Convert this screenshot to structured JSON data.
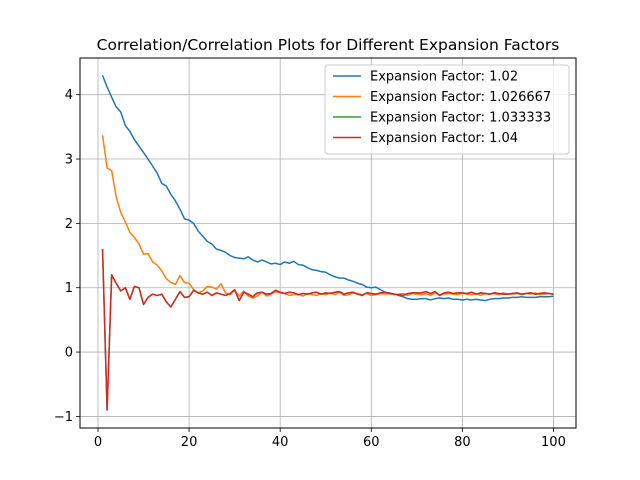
{
  "chart_data": {
    "type": "line",
    "title": "Correlation/Correlation Plots for Different Expansion Factors",
    "xlabel": "",
    "ylabel": "",
    "xlim": [
      -3.95,
      104.95
    ],
    "ylim": [
      -1.18,
      4.57
    ],
    "xticks": [
      0,
      20,
      40,
      60,
      80,
      100
    ],
    "yticks": [
      -1,
      0,
      1,
      2,
      3,
      4
    ],
    "grid": true,
    "legend": "top-right",
    "series": [
      {
        "name": "Expansion Factor: 1.02",
        "color": "#1f77b4",
        "x": [
          1,
          2,
          3,
          4,
          5,
          6,
          7,
          8,
          9,
          10,
          11,
          12,
          13,
          14,
          15,
          16,
          17,
          18,
          19,
          20,
          21,
          22,
          23,
          24,
          25,
          26,
          27,
          28,
          29,
          30,
          31,
          32,
          33,
          34,
          35,
          36,
          37,
          38,
          39,
          40,
          41,
          42,
          43,
          44,
          45,
          46,
          47,
          48,
          49,
          50,
          51,
          52,
          53,
          54,
          55,
          56,
          57,
          58,
          59,
          60,
          61,
          62,
          63,
          64,
          65,
          66,
          67,
          68,
          69,
          70,
          71,
          72,
          73,
          74,
          75,
          76,
          77,
          78,
          79,
          80,
          81,
          82,
          83,
          84,
          85,
          86,
          87,
          88,
          89,
          90,
          91,
          92,
          93,
          94,
          95,
          96,
          97,
          98,
          99,
          100
        ],
        "y": [
          4.3,
          4.12,
          3.96,
          3.81,
          3.73,
          3.52,
          3.43,
          3.3,
          3.2,
          3.1,
          3.0,
          2.89,
          2.78,
          2.62,
          2.58,
          2.45,
          2.35,
          2.22,
          2.07,
          2.05,
          2.0,
          1.88,
          1.8,
          1.72,
          1.68,
          1.6,
          1.58,
          1.55,
          1.5,
          1.47,
          1.46,
          1.45,
          1.48,
          1.43,
          1.4,
          1.43,
          1.4,
          1.37,
          1.38,
          1.36,
          1.4,
          1.38,
          1.41,
          1.36,
          1.35,
          1.31,
          1.28,
          1.27,
          1.25,
          1.24,
          1.2,
          1.17,
          1.15,
          1.15,
          1.12,
          1.1,
          1.07,
          1.05,
          1.01,
          1.0,
          1.01,
          0.97,
          0.93,
          0.92,
          0.9,
          0.88,
          0.86,
          0.83,
          0.82,
          0.82,
          0.83,
          0.83,
          0.81,
          0.83,
          0.84,
          0.83,
          0.84,
          0.82,
          0.82,
          0.81,
          0.82,
          0.81,
          0.82,
          0.81,
          0.8,
          0.82,
          0.83,
          0.83,
          0.84,
          0.84,
          0.85,
          0.85,
          0.86,
          0.85,
          0.85,
          0.85,
          0.86,
          0.86,
          0.86,
          0.87
        ]
      },
      {
        "name": "Expansion Factor: 1.026667",
        "color": "#ff7f0e",
        "x": [
          1,
          2,
          3,
          4,
          5,
          6,
          7,
          8,
          9,
          10,
          11,
          12,
          13,
          14,
          15,
          16,
          17,
          18,
          19,
          20,
          21,
          22,
          23,
          24,
          25,
          26,
          27,
          28,
          29,
          30,
          31,
          32,
          33,
          34,
          35,
          36,
          37,
          38,
          39,
          40,
          41,
          42,
          43,
          44,
          45,
          46,
          47,
          48,
          49,
          50,
          51,
          52,
          53,
          54,
          55,
          56,
          57,
          58,
          59,
          60,
          61,
          62,
          63,
          64,
          65,
          66,
          67,
          68,
          69,
          70,
          71,
          72,
          73,
          74,
          75,
          76,
          77,
          78,
          79,
          80,
          81,
          82,
          83,
          84,
          85,
          86,
          87,
          88,
          89,
          90,
          91,
          92,
          93,
          94,
          95,
          96,
          97,
          98,
          99,
          100
        ],
        "y": [
          3.37,
          2.86,
          2.82,
          2.41,
          2.17,
          2.02,
          1.86,
          1.78,
          1.68,
          1.52,
          1.53,
          1.4,
          1.35,
          1.26,
          1.14,
          1.08,
          1.05,
          1.19,
          1.08,
          1.07,
          0.97,
          0.92,
          0.95,
          1.02,
          1.01,
          0.98,
          1.06,
          0.92,
          0.89,
          0.96,
          0.87,
          0.95,
          0.87,
          0.84,
          0.87,
          0.93,
          0.87,
          0.9,
          0.94,
          0.92,
          0.91,
          0.88,
          0.89,
          0.9,
          0.87,
          0.91,
          0.89,
          0.88,
          0.91,
          0.89,
          0.92,
          0.89,
          0.93,
          0.88,
          0.89,
          0.92,
          0.91,
          0.89,
          0.91,
          0.88,
          0.89,
          0.91,
          0.9,
          0.91,
          0.89,
          0.9,
          0.91,
          0.88,
          0.91,
          0.9,
          0.89,
          0.91,
          0.88,
          0.92,
          0.89,
          0.9,
          0.91,
          0.9,
          0.89,
          0.92,
          0.9,
          0.89,
          0.91,
          0.88,
          0.91,
          0.9,
          0.91,
          0.89,
          0.92,
          0.9,
          0.9,
          0.91,
          0.89,
          0.91,
          0.9,
          0.92,
          0.89,
          0.9,
          0.91,
          0.9
        ]
      },
      {
        "name": "Expansion Factor: 1.033333",
        "color": "#2ca02c",
        "x": [
          1,
          2,
          3,
          4,
          5,
          6,
          7,
          8,
          9,
          10,
          11,
          12,
          13,
          14,
          15,
          16,
          17,
          18,
          19,
          20,
          21,
          22,
          23,
          24,
          25,
          26,
          27,
          28,
          29,
          30,
          31,
          32,
          33,
          34,
          35,
          36,
          37,
          38,
          39,
          40,
          41,
          42,
          43,
          44,
          45,
          46,
          47,
          48,
          49,
          50,
          51,
          52,
          53,
          54,
          55,
          56,
          57,
          58,
          59,
          60,
          61,
          62,
          63,
          64,
          65,
          66,
          67,
          68,
          69,
          70,
          71,
          72,
          73,
          74,
          75,
          76,
          77,
          78,
          79,
          80,
          81,
          82,
          83,
          84,
          85,
          86,
          87,
          88,
          89,
          90,
          91,
          92,
          93,
          94,
          95,
          96,
          97,
          98,
          99,
          100
        ],
        "y": [
          1.6,
          -0.9,
          1.2,
          1.07,
          0.95,
          1.0,
          0.82,
          1.02,
          1.0,
          0.74,
          0.85,
          0.9,
          0.88,
          0.9,
          0.78,
          0.7,
          0.82,
          0.94,
          0.85,
          0.86,
          0.96,
          0.92,
          0.9,
          0.93,
          0.88,
          0.92,
          0.9,
          0.88,
          0.91,
          0.97,
          0.8,
          0.93,
          0.9,
          0.86,
          0.92,
          0.93,
          0.9,
          0.91,
          0.96,
          0.93,
          0.91,
          0.93,
          0.92,
          0.89,
          0.91,
          0.9,
          0.92,
          0.93,
          0.9,
          0.92,
          0.91,
          0.93,
          0.94,
          0.9,
          0.92,
          0.93,
          0.9,
          0.88,
          0.92,
          0.91,
          0.9,
          0.92,
          0.93,
          0.91,
          0.9,
          0.89,
          0.88,
          0.91,
          0.92,
          0.92,
          0.92,
          0.94,
          0.91,
          0.94,
          0.88,
          0.92,
          0.93,
          0.91,
          0.92,
          0.92,
          0.91,
          0.93,
          0.9,
          0.92,
          0.91,
          0.9,
          0.92,
          0.91,
          0.9,
          0.9,
          0.91,
          0.92,
          0.9,
          0.91,
          0.92,
          0.9,
          0.91,
          0.92,
          0.91,
          0.9
        ]
      },
      {
        "name": "Expansion Factor: 1.04",
        "color": "#d62728",
        "x": [
          1,
          2,
          3,
          4,
          5,
          6,
          7,
          8,
          9,
          10,
          11,
          12,
          13,
          14,
          15,
          16,
          17,
          18,
          19,
          20,
          21,
          22,
          23,
          24,
          25,
          26,
          27,
          28,
          29,
          30,
          31,
          32,
          33,
          34,
          35,
          36,
          37,
          38,
          39,
          40,
          41,
          42,
          43,
          44,
          45,
          46,
          47,
          48,
          49,
          50,
          51,
          52,
          53,
          54,
          55,
          56,
          57,
          58,
          59,
          60,
          61,
          62,
          63,
          64,
          65,
          66,
          67,
          68,
          69,
          70,
          71,
          72,
          73,
          74,
          75,
          76,
          77,
          78,
          79,
          80,
          81,
          82,
          83,
          84,
          85,
          86,
          87,
          88,
          89,
          90,
          91,
          92,
          93,
          94,
          95,
          96,
          97,
          98,
          99,
          100
        ],
        "y": [
          1.6,
          -0.9,
          1.2,
          1.07,
          0.95,
          1.0,
          0.82,
          1.02,
          1.0,
          0.74,
          0.85,
          0.9,
          0.88,
          0.9,
          0.78,
          0.7,
          0.82,
          0.94,
          0.85,
          0.86,
          0.96,
          0.92,
          0.9,
          0.93,
          0.88,
          0.92,
          0.9,
          0.88,
          0.91,
          0.97,
          0.8,
          0.93,
          0.9,
          0.86,
          0.92,
          0.93,
          0.9,
          0.91,
          0.96,
          0.93,
          0.91,
          0.93,
          0.92,
          0.89,
          0.91,
          0.9,
          0.92,
          0.93,
          0.9,
          0.92,
          0.91,
          0.93,
          0.94,
          0.9,
          0.92,
          0.93,
          0.9,
          0.88,
          0.92,
          0.91,
          0.9,
          0.92,
          0.93,
          0.91,
          0.9,
          0.89,
          0.88,
          0.91,
          0.92,
          0.92,
          0.92,
          0.94,
          0.91,
          0.94,
          0.88,
          0.92,
          0.93,
          0.91,
          0.92,
          0.92,
          0.91,
          0.93,
          0.9,
          0.92,
          0.91,
          0.9,
          0.92,
          0.91,
          0.9,
          0.9,
          0.91,
          0.92,
          0.9,
          0.91,
          0.92,
          0.9,
          0.91,
          0.92,
          0.91,
          0.9
        ]
      }
    ]
  }
}
